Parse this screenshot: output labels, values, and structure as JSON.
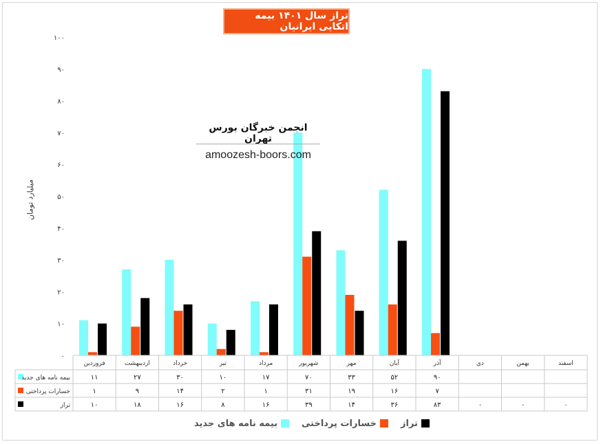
{
  "chart_data": {
    "type": "bar",
    "title": "تراز سال ۱۴۰۱ بیمه اتکایی ایرانیان",
    "ylabel": "میلیارد تومان",
    "ylim": [
      0,
      100
    ],
    "yticks": [
      0,
      10,
      20,
      30,
      40,
      50,
      60,
      70,
      80,
      90,
      100
    ],
    "ytick_labels": [
      "۰",
      "۱۰",
      "۲۰",
      "۳۰",
      "۴۰",
      "۵۰",
      "۶۰",
      "۷۰",
      "۸۰",
      "۹۰",
      "۱۰۰"
    ],
    "categories": [
      "فروردین",
      "اردیبهشت",
      "خرداد",
      "تیر",
      "مرداد",
      "شهریور",
      "مهر",
      "آبان",
      "آذر",
      "دی",
      "بهمن",
      "اسفند"
    ],
    "series": [
      {
        "name": "بیمه نامه های جدید",
        "color": "#80fcfc",
        "values": [
          11,
          27,
          30,
          10,
          17,
          70,
          33,
          52,
          90,
          null,
          null,
          null
        ],
        "labels": [
          "۱۱",
          "۲۷",
          "۳۰",
          "۱۰",
          "۱۷",
          "۷۰",
          "۳۳",
          "۵۲",
          "۹۰",
          "",
          "",
          ""
        ]
      },
      {
        "name": "خسارات پرداختی",
        "color": "#f84e12",
        "values": [
          1,
          9,
          14,
          2,
          1,
          31,
          19,
          16,
          7,
          null,
          null,
          null
        ],
        "labels": [
          "۱",
          "۹",
          "۱۴",
          "۲",
          "۱",
          "۳۱",
          "۱۹",
          "۱۶",
          "۷",
          "",
          "",
          ""
        ]
      },
      {
        "name": "تراز",
        "color": "#000000",
        "values": [
          10,
          18,
          16,
          8,
          16,
          39,
          14,
          36,
          83,
          0,
          0,
          0
        ],
        "labels": [
          "۱۰",
          "۱۸",
          "۱۶",
          "۸",
          "۱۶",
          "۳۹",
          "۱۴",
          "۳۶",
          "۸۳",
          "۰",
          "۰",
          "۰"
        ]
      }
    ],
    "data_table": true,
    "legend_position": "bottom",
    "grid": false
  },
  "watermark": {
    "title": "انجمن خبرگان بورس تهران",
    "url": "amoozesh-boors.com"
  }
}
